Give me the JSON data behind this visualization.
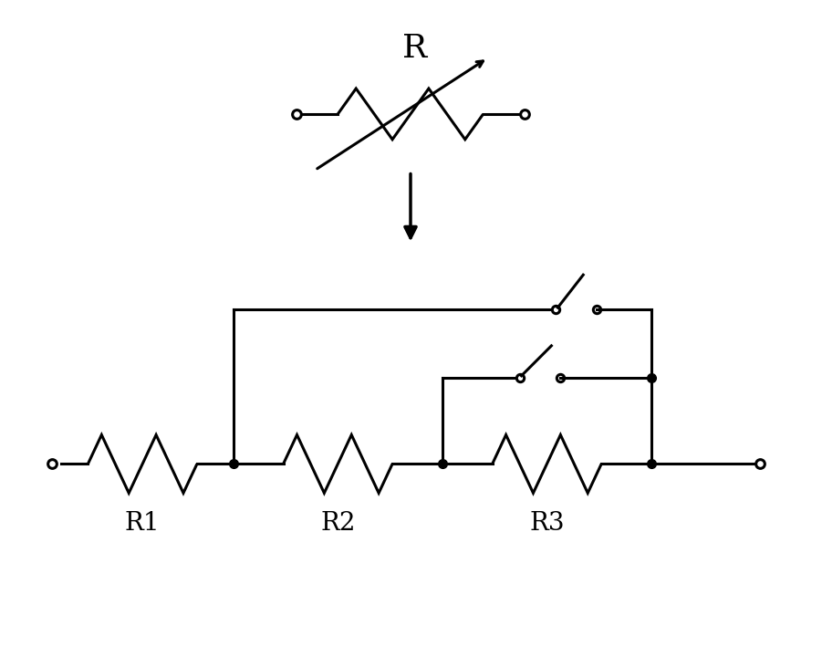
{
  "bg_color": "#ffffff",
  "line_color": "#000000",
  "lw": 2.2,
  "lw_thick": 2.5,
  "title_R": "R",
  "labels": [
    "R1",
    "R2",
    "R3"
  ],
  "label_fontsize": 20,
  "title_fontsize": 26,
  "dot_size": 7,
  "open_circle_size": 7,
  "switch_open_size": 6
}
